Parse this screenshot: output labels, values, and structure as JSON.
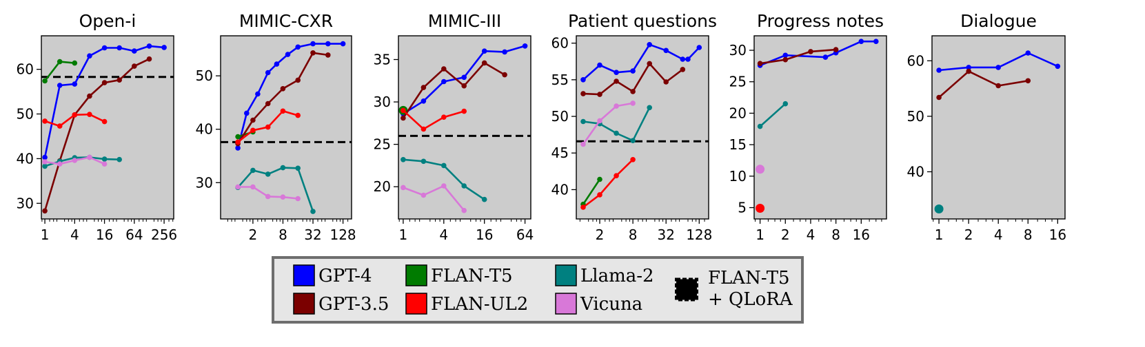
{
  "chart_data": [
    {
      "type": "line",
      "title": "Open-i",
      "xscale": "log2",
      "xlim": [
        0.85,
        400
      ],
      "xticks": [
        1,
        4,
        16,
        64,
        256
      ],
      "xtick_labels": [
        "1",
        "4",
        "16",
        "64",
        "256"
      ],
      "ylim": [
        26.5,
        67.5
      ],
      "yticks": [
        30,
        40,
        50,
        60
      ],
      "ytick_labels": [
        "30",
        "40",
        "50",
        "60"
      ],
      "hline": 58.3,
      "series": [
        {
          "name": "GPT-4",
          "x": [
            1,
            2,
            4,
            8,
            16,
            32,
            64,
            128,
            256
          ],
          "y": [
            40.3,
            56.4,
            56.7,
            63.0,
            64.8,
            64.8,
            64.1,
            65.2,
            64.9
          ]
        },
        {
          "name": "FLAN-T5",
          "x": [
            1,
            2,
            4
          ],
          "y": [
            57.4,
            61.7,
            61.4
          ]
        },
        {
          "name": "GPT-3.5",
          "x": [
            1,
            2,
            4,
            8,
            16,
            32,
            64,
            128
          ],
          "y": [
            28.3,
            39.5,
            49.8,
            54.0,
            57.0,
            57.6,
            60.7,
            62.3
          ]
        },
        {
          "name": "FLAN-UL2",
          "x": [
            1,
            2,
            4,
            8,
            16
          ],
          "y": [
            48.4,
            47.3,
            49.8,
            49.9,
            48.3
          ]
        },
        {
          "name": "Llama-2",
          "x": [
            1,
            2,
            4,
            8,
            16,
            32
          ],
          "y": [
            38.3,
            39.4,
            40.2,
            40.3,
            39.9,
            39.8
          ]
        },
        {
          "name": "Vicuna",
          "x": [
            1,
            2,
            4,
            8,
            16
          ],
          "y": [
            39.3,
            38.8,
            39.6,
            40.3,
            38.8
          ]
        }
      ]
    },
    {
      "type": "line",
      "title": "MIMIC-CXR",
      "xscale": "log2",
      "xlim": [
        0.45,
        190
      ],
      "xticks": [
        2,
        8,
        32,
        128
      ],
      "xtick_labels": [
        "2",
        "8",
        "32",
        "128"
      ],
      "ylim": [
        23.2,
        57.5
      ],
      "yticks": [
        30,
        40,
        50
      ],
      "ytick_labels": [
        "30",
        "40",
        "50"
      ],
      "hline": 37.6,
      "series": [
        {
          "name": "GPT-4",
          "x": [
            1,
            1.5,
            2.5,
            4,
            6,
            10,
            16,
            32,
            64,
            128
          ],
          "y": [
            36.5,
            43.0,
            46.6,
            50.6,
            52.2,
            54.0,
            55.4,
            56.0,
            56.0,
            56.0
          ]
        },
        {
          "name": "FLAN-T5",
          "x": [
            1,
            2
          ],
          "y": [
            38.6,
            39.5
          ]
        },
        {
          "name": "GPT-3.5",
          "x": [
            1,
            2,
            4,
            8,
            16,
            32,
            64
          ],
          "y": [
            37.3,
            41.7,
            44.8,
            47.6,
            49.2,
            54.3,
            53.9
          ]
        },
        {
          "name": "FLAN-UL2",
          "x": [
            1,
            2,
            4,
            8,
            16
          ],
          "y": [
            37.6,
            39.8,
            40.4,
            43.4,
            42.6
          ]
        },
        {
          "name": "Llama-2",
          "x": [
            1,
            2,
            4,
            8,
            16,
            32
          ],
          "y": [
            29.1,
            32.3,
            31.6,
            32.8,
            32.7,
            24.6
          ]
        },
        {
          "name": "Vicuna",
          "x": [
            1,
            2,
            4,
            8,
            16
          ],
          "y": [
            29.2,
            29.2,
            27.4,
            27.3,
            27.0
          ]
        }
      ]
    },
    {
      "type": "line",
      "title": "MIMIC-III",
      "xscale": "log2",
      "xlim": [
        0.85,
        78
      ],
      "xticks": [
        1,
        4,
        16,
        64
      ],
      "xtick_labels": [
        "1",
        "4",
        "16",
        "64"
      ],
      "ylim": [
        16.2,
        37.8
      ],
      "yticks": [
        20,
        25,
        30,
        35
      ],
      "ytick_labels": [
        "20",
        "25",
        "30",
        "35"
      ],
      "hline": 26.0,
      "series": [
        {
          "name": "GPT-4",
          "x": [
            1,
            2,
            4,
            8,
            16,
            32,
            64
          ],
          "y": [
            28.6,
            30.1,
            32.4,
            32.9,
            36.0,
            35.9,
            36.6
          ]
        },
        {
          "name": "FLAN-T5",
          "x": [
            1
          ],
          "y": [
            29.0
          ]
        },
        {
          "name": "GPT-3.5",
          "x": [
            1,
            2,
            4,
            8,
            16,
            32
          ],
          "y": [
            28.1,
            31.7,
            33.9,
            31.9,
            34.6,
            33.2
          ]
        },
        {
          "name": "FLAN-UL2",
          "x": [
            1,
            2,
            4,
            8
          ],
          "y": [
            29.0,
            26.8,
            28.2,
            28.9
          ]
        },
        {
          "name": "Llama-2",
          "x": [
            1,
            2,
            4,
            8,
            16
          ],
          "y": [
            23.2,
            23.0,
            22.5,
            20.1,
            18.5
          ]
        },
        {
          "name": "Vicuna",
          "x": [
            1,
            2,
            4,
            8
          ],
          "y": [
            19.9,
            19.0,
            20.1,
            17.2
          ]
        }
      ]
    },
    {
      "type": "line",
      "title": "Patient questions",
      "xscale": "log2",
      "xlim": [
        0.75,
        190
      ],
      "xticks": [
        2,
        8,
        32,
        128
      ],
      "xtick_labels": [
        "2",
        "8",
        "32",
        "128"
      ],
      "ylim": [
        36.0,
        61.0
      ],
      "yticks": [
        40,
        45,
        50,
        55,
        60
      ],
      "ytick_labels": [
        "40",
        "45",
        "50",
        "55",
        "60"
      ],
      "hline": 46.6,
      "series": [
        {
          "name": "GPT-4",
          "x": [
            1,
            2,
            4,
            8,
            16,
            32,
            64,
            80,
            128
          ],
          "y": [
            55.0,
            57.0,
            56.0,
            56.2,
            59.8,
            59.0,
            57.8,
            57.8,
            59.4
          ]
        },
        {
          "name": "FLAN-T5",
          "x": [
            1,
            2
          ],
          "y": [
            38.0,
            41.4
          ]
        },
        {
          "name": "GPT-3.5",
          "x": [
            1,
            2,
            4,
            8,
            16,
            32,
            64
          ],
          "y": [
            53.1,
            53.0,
            54.8,
            53.4,
            57.2,
            54.7,
            56.4
          ]
        },
        {
          "name": "FLAN-UL2",
          "x": [
            1,
            2,
            4,
            8
          ],
          "y": [
            37.6,
            39.3,
            41.9,
            44.1
          ]
        },
        {
          "name": "Llama-2",
          "x": [
            1,
            2,
            4,
            8,
            16
          ],
          "y": [
            49.3,
            49.0,
            47.7,
            46.7,
            51.2
          ]
        },
        {
          "name": "Vicuna",
          "x": [
            1,
            2,
            4,
            8
          ],
          "y": [
            46.2,
            49.4,
            51.4,
            51.8
          ]
        }
      ]
    },
    {
      "type": "line",
      "title": "Progress notes",
      "xscale": "log2",
      "xlim": [
        0.85,
        32
      ],
      "xticks": [
        1,
        2,
        4,
        8,
        16
      ],
      "xtick_labels": [
        "1",
        "2",
        "4",
        "8",
        "16"
      ],
      "ylim": [
        3.2,
        32.3
      ],
      "yticks": [
        5,
        10,
        15,
        20,
        25,
        30
      ],
      "ytick_labels": [
        "5",
        "10",
        "15",
        "20",
        "25",
        "30"
      ],
      "series": [
        {
          "name": "GPT-4",
          "x": [
            1,
            2,
            6,
            8,
            16,
            24
          ],
          "y": [
            27.6,
            29.2,
            28.9,
            29.6,
            31.4,
            31.4
          ]
        },
        {
          "name": "GPT-3.5",
          "x": [
            1,
            2,
            4,
            8
          ],
          "y": [
            27.9,
            28.5,
            29.8,
            30.1
          ]
        },
        {
          "name": "Llama-2",
          "x": [
            1,
            2
          ],
          "y": [
            17.9,
            21.5
          ]
        },
        {
          "name": "Vicuna",
          "x": [
            1
          ],
          "y": [
            11.1
          ]
        },
        {
          "name": "FLAN-UL2",
          "x": [
            1
          ],
          "y": [
            4.9
          ]
        }
      ]
    },
    {
      "type": "line",
      "title": "Dialogue",
      "xscale": "log2",
      "xlim": [
        0.85,
        19
      ],
      "xticks": [
        1,
        2,
        4,
        8,
        16
      ],
      "xtick_labels": [
        "1",
        "2",
        "4",
        "8",
        "16"
      ],
      "ylim": [
        31.5,
        64.5
      ],
      "yticks": [
        40,
        50,
        60
      ],
      "ytick_labels": [
        "40",
        "50",
        "60"
      ],
      "series": [
        {
          "name": "GPT-4",
          "x": [
            1,
            2,
            4,
            8,
            16
          ],
          "y": [
            58.3,
            58.8,
            58.8,
            61.4,
            59.0
          ]
        },
        {
          "name": "GPT-3.5",
          "x": [
            1,
            2,
            4,
            8
          ],
          "y": [
            53.4,
            58.1,
            55.5,
            56.4
          ]
        },
        {
          "name": "Llama-2",
          "x": [
            1
          ],
          "y": [
            33.3
          ]
        }
      ]
    }
  ],
  "legend": {
    "location": "bottom-center",
    "columns": [
      [
        {
          "label": "GPT-4",
          "color": "#0000ff",
          "kind": "box"
        },
        {
          "label": "GPT-3.5",
          "color": "#7b0000",
          "kind": "box"
        }
      ],
      [
        {
          "label": "FLAN-T5",
          "color": "#007b00",
          "kind": "box"
        },
        {
          "label": "FLAN-UL2",
          "color": "#ff0000",
          "kind": "box"
        }
      ],
      [
        {
          "label": "Llama-2",
          "color": "#008080",
          "kind": "box"
        },
        {
          "label": "Vicuna",
          "color": "#d878d8",
          "kind": "box"
        }
      ],
      [
        {
          "label": "FLAN-T5",
          "label2": "+ QLoRA",
          "color": "#000000",
          "kind": "dashed-box"
        }
      ]
    ]
  },
  "colors": {
    "GPT-4": "#0000ff",
    "GPT-3.5": "#7b0000",
    "FLAN-T5": "#007b00",
    "FLAN-UL2": "#ff0000",
    "Llama-2": "#008080",
    "Vicuna": "#d878d8",
    "axes_bg": "#cccccc",
    "hline": "#000000"
  }
}
